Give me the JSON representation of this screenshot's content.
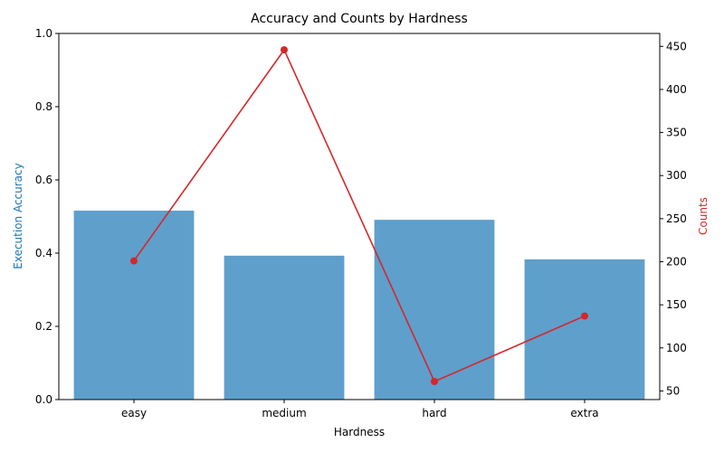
{
  "chart_data": {
    "type": "bar",
    "title": "Accuracy and Counts by Hardness",
    "xlabel": "Hardness",
    "categories": [
      "easy",
      "medium",
      "hard",
      "extra"
    ],
    "colors": {
      "bar": "#5f9fcc",
      "line": "#d62728",
      "left_axis_label": "#1f77b4",
      "right_axis_label": "#d62728"
    },
    "y_left": {
      "label": "Execution Accuracy",
      "ylim": [
        0,
        1.0
      ],
      "ticks": [
        "0.0",
        "0.2",
        "0.4",
        "0.6",
        "0.8",
        "1.0"
      ]
    },
    "y_right": {
      "label": "Counts",
      "ylim": [
        40,
        465
      ],
      "ticks": [
        "50",
        "100",
        "150",
        "200",
        "250",
        "300",
        "350",
        "400",
        "450"
      ]
    },
    "series": [
      {
        "type": "bar",
        "axis": "left",
        "values": [
          0.516,
          0.393,
          0.491,
          0.383
        ]
      },
      {
        "type": "line",
        "axis": "right",
        "marker": "circle",
        "values": [
          201,
          446,
          61,
          137
        ]
      }
    ],
    "grid": false
  }
}
